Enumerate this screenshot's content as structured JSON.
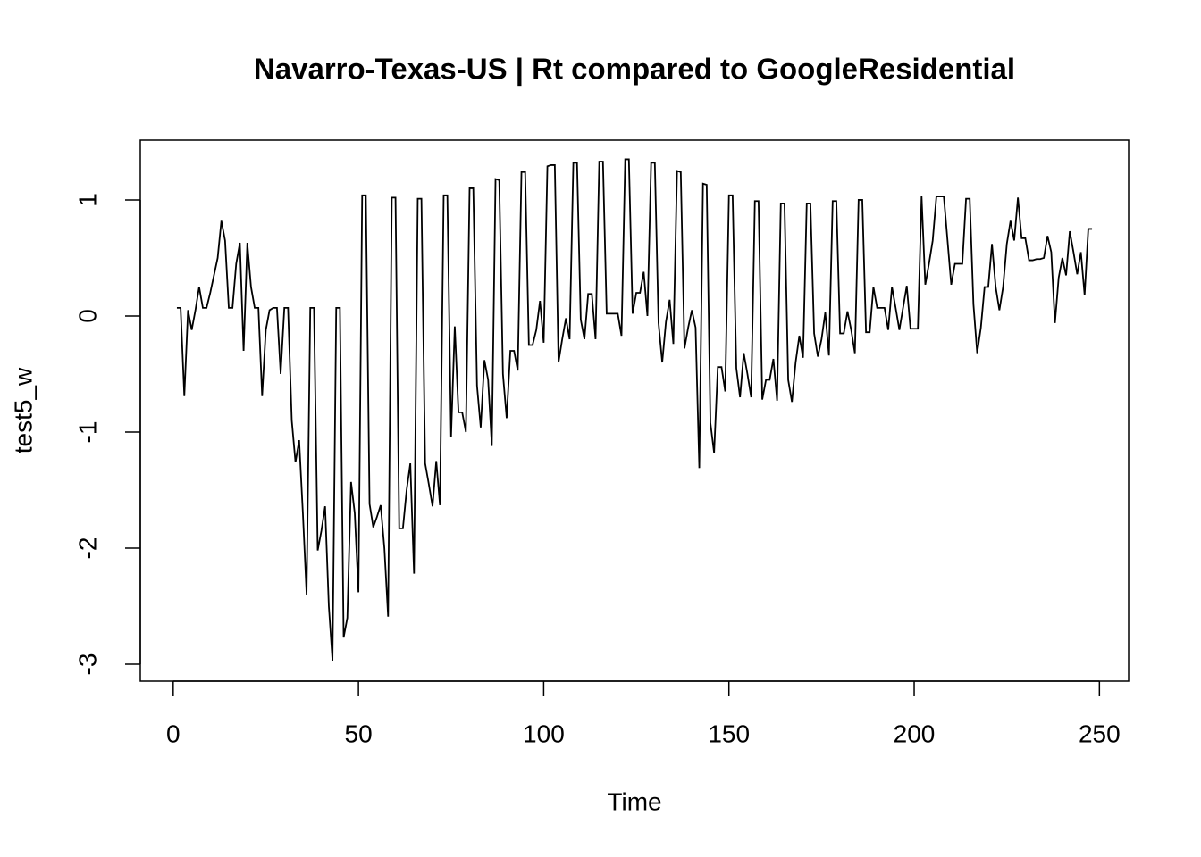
{
  "chart_data": {
    "type": "line",
    "title": "Navarro-Texas-US | Rt compared to GoogleResidential",
    "x_label": "Time",
    "y_label": "test5_w",
    "x": [
      1,
      2,
      3,
      4,
      5,
      6,
      7,
      8,
      9,
      10,
      11,
      12,
      13,
      14,
      15,
      16,
      17,
      18,
      19,
      20,
      21,
      22,
      23,
      24,
      25,
      26,
      27,
      28,
      29,
      30,
      31,
      32,
      33,
      34,
      35,
      36,
      37,
      38,
      39,
      40,
      41,
      42,
      43,
      44,
      45,
      46,
      47,
      48,
      49,
      50,
      51,
      52,
      53,
      54,
      55,
      56,
      57,
      58,
      59,
      60,
      61,
      62,
      63,
      64,
      65,
      66,
      67,
      68,
      69,
      70,
      71,
      72,
      73,
      74,
      75,
      76,
      77,
      78,
      79,
      80,
      81,
      82,
      83,
      84,
      85,
      86,
      87,
      88,
      89,
      90,
      91,
      92,
      93,
      94,
      95,
      96,
      97,
      98,
      99,
      100,
      101,
      102,
      103,
      104,
      105,
      106,
      107,
      108,
      109,
      110,
      111,
      112,
      113,
      114,
      115,
      116,
      117,
      118,
      119,
      120,
      121,
      122,
      123,
      124,
      125,
      126,
      127,
      128,
      129,
      130,
      131,
      132,
      133,
      134,
      135,
      136,
      137,
      138,
      139,
      140,
      141,
      142,
      143,
      144,
      145,
      146,
      147,
      148,
      149,
      150,
      151,
      152,
      153,
      154,
      155,
      156,
      157,
      158,
      159,
      160,
      161,
      162,
      163,
      164,
      165,
      166,
      167,
      168,
      169,
      170,
      171,
      172,
      173,
      174,
      175,
      176,
      177,
      178,
      179,
      180,
      181,
      182,
      183,
      184,
      185,
      186,
      187,
      188,
      189,
      190,
      191,
      192,
      193,
      194,
      195,
      196,
      197,
      198,
      199,
      200,
      201,
      202,
      203,
      204,
      205,
      206,
      207,
      208,
      209,
      210,
      211,
      212,
      213,
      214,
      215,
      216,
      217,
      218,
      219,
      220,
      221,
      222,
      223,
      224,
      225,
      226,
      227,
      228,
      229,
      230,
      231,
      232,
      233,
      234,
      235,
      236,
      237,
      238,
      239,
      240,
      241,
      242,
      243,
      244,
      245,
      246,
      247,
      248
    ],
    "series": [
      {
        "name": "test5_w",
        "color": "#000000",
        "values": [
          0.07,
          0.07,
          -0.69,
          0.05,
          -0.12,
          0.05,
          0.25,
          0.07,
          0.07,
          0.2,
          0.35,
          0.5,
          0.82,
          0.65,
          0.07,
          0.07,
          0.45,
          0.63,
          -0.3,
          0.63,
          0.25,
          0.07,
          0.07,
          -0.69,
          -0.12,
          0.05,
          0.07,
          0.07,
          -0.5,
          0.07,
          0.07,
          -0.9,
          -1.26,
          -1.07,
          -1.7,
          -2.4,
          0.07,
          0.07,
          -2.02,
          -1.85,
          -1.64,
          -2.5,
          -2.97,
          0.07,
          0.07,
          -2.77,
          -2.6,
          -1.43,
          -1.7,
          -2.38,
          1.04,
          1.04,
          -1.62,
          -1.82,
          -1.73,
          -1.63,
          -2.0,
          -2.59,
          1.02,
          1.02,
          -1.83,
          -1.83,
          -1.5,
          -1.27,
          -2.22,
          1.01,
          1.01,
          -1.27,
          -1.45,
          -1.64,
          -1.25,
          -1.63,
          1.04,
          1.04,
          -1.04,
          -0.09,
          -0.83,
          -0.83,
          -1.0,
          1.1,
          1.1,
          -0.6,
          -0.96,
          -0.38,
          -0.55,
          -1.12,
          1.18,
          1.17,
          -0.5,
          -0.88,
          -0.3,
          -0.3,
          -0.47,
          1.24,
          1.24,
          -0.25,
          -0.25,
          -0.12,
          0.13,
          -0.23,
          1.29,
          1.3,
          1.3,
          -0.4,
          -0.2,
          -0.02,
          -0.2,
          1.32,
          1.32,
          -0.03,
          -0.2,
          0.19,
          0.19,
          -0.2,
          1.33,
          1.33,
          0.02,
          0.02,
          0.02,
          0.02,
          -0.17,
          1.35,
          1.35,
          0.02,
          0.2,
          0.2,
          0.38,
          0.0,
          1.32,
          1.32,
          -0.06,
          -0.4,
          -0.05,
          0.14,
          -0.24,
          1.25,
          1.24,
          -0.28,
          -0.1,
          0.05,
          -0.1,
          -1.31,
          1.14,
          1.13,
          -0.92,
          -1.18,
          -0.44,
          -0.44,
          -0.65,
          1.04,
          1.04,
          -0.45,
          -0.7,
          -0.32,
          -0.5,
          -0.7,
          0.99,
          0.99,
          -0.72,
          -0.55,
          -0.55,
          -0.37,
          -0.73,
          0.97,
          0.97,
          -0.55,
          -0.74,
          -0.4,
          -0.17,
          -0.36,
          0.97,
          0.97,
          -0.15,
          -0.35,
          -0.2,
          0.03,
          -0.34,
          0.99,
          0.99,
          -0.15,
          -0.15,
          0.04,
          -0.12,
          -0.32,
          1.0,
          1.0,
          -0.14,
          -0.14,
          0.25,
          0.07,
          0.07,
          0.07,
          -0.12,
          0.25,
          0.07,
          -0.12,
          0.07,
          0.26,
          -0.11,
          -0.11,
          -0.11,
          1.03,
          0.27,
          0.45,
          0.65,
          1.03,
          1.03,
          1.03,
          0.65,
          0.27,
          0.45,
          0.45,
          0.45,
          1.01,
          1.01,
          0.1,
          -0.32,
          -0.1,
          0.25,
          0.25,
          0.62,
          0.25,
          0.05,
          0.25,
          0.62,
          0.82,
          0.65,
          1.02,
          0.67,
          0.67,
          0.48,
          0.48,
          0.49,
          0.49,
          0.5,
          0.69,
          0.55,
          -0.06,
          0.33,
          0.5,
          0.35,
          0.73,
          0.55,
          0.36,
          0.55,
          0.18,
          0.75,
          0.75
        ]
      }
    ],
    "xlim": [
      -8.88,
      257.88
    ],
    "xticks": [
      0,
      50,
      100,
      150,
      200,
      250
    ],
    "ylim": [
      -3.146,
      1.515
    ],
    "yticks": [
      -3,
      -2,
      -1,
      0,
      1
    ]
  }
}
